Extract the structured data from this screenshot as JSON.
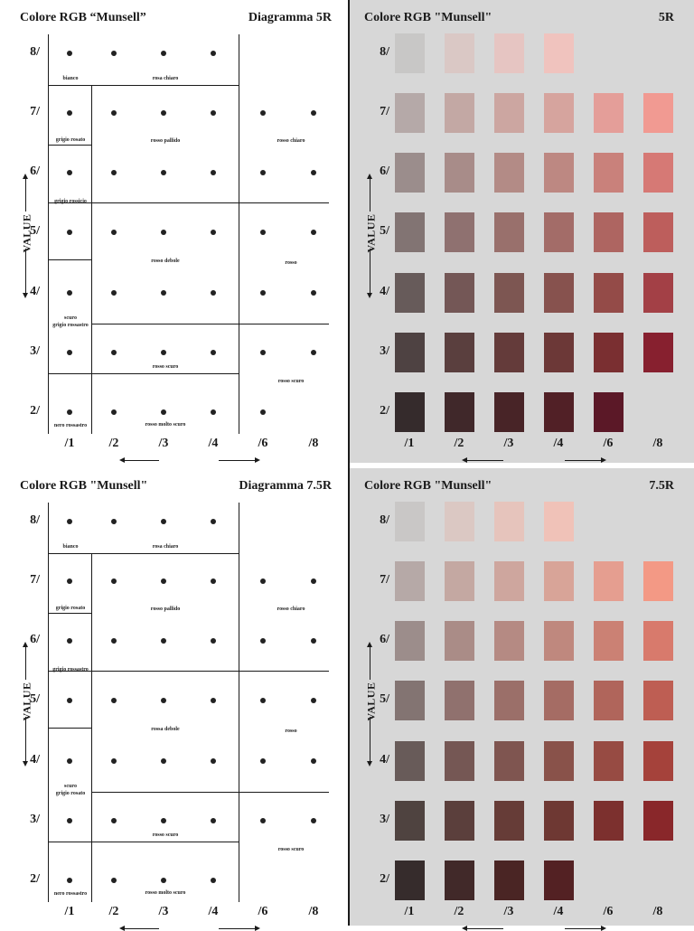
{
  "value_axis_label": "VALUE",
  "row_labels": [
    "8/",
    "7/",
    "6/",
    "5/",
    "4/",
    "3/",
    "2/"
  ],
  "col_labels": [
    "/1",
    "/2",
    "/3",
    "/4",
    "/6",
    "/8"
  ],
  "diagrams": [
    {
      "left_title": "Colore RGB “Munsell”",
      "left_subtitle": "Diagramma 5R",
      "right_title": "Colore RGB \"Munsell\"",
      "right_hue": "5R",
      "regions": [
        {
          "text": "bianco"
        },
        {
          "text": "rosa chiaro"
        },
        {
          "text": "grigio rosato"
        },
        {
          "text": "rosso pallido"
        },
        {
          "text": "rosso chiaro"
        },
        {
          "text": "grigio rossicio"
        },
        {
          "text": "rosso debole"
        },
        {
          "text": "rosso"
        },
        {
          "text": "scuro"
        },
        {
          "text": "grigio rossastro"
        },
        {
          "text": "rosso scuro"
        },
        {
          "text": "rosso scuro"
        },
        {
          "text": "nero rossastro"
        },
        {
          "text": "rosso molto scuro"
        }
      ],
      "swatches": [
        [
          "#c8c7c6",
          "#dac8c5",
          "#e6c5c2",
          "#f0c3be",
          null,
          null
        ],
        [
          "#b5a9a8",
          "#c3a8a4",
          "#cca6a1",
          "#d6a49e",
          "#e49e99",
          "#f19a92"
        ],
        [
          "#9b8d8c",
          "#a88c89",
          "#b38b86",
          "#bd8882",
          "#c9817b",
          "#d67975"
        ],
        [
          "#827473",
          "#8f7170",
          "#99706c",
          "#a36c68",
          "#ae6561",
          "#bd5e5c"
        ],
        [
          "#675b5a",
          "#745756",
          "#7d5652",
          "#87524e",
          "#944b48",
          "#a34046"
        ],
        [
          "#4e4242",
          "#5a3f3e",
          "#643b3a",
          "#6c3837",
          "#7a2f31",
          "#87202f"
        ],
        [
          "#352b2c",
          "#40282a",
          "#482427",
          "#512026",
          "#5b1827",
          null
        ]
      ],
      "dots": [
        [
          1,
          1,
          1,
          1,
          0,
          0
        ],
        [
          1,
          1,
          1,
          1,
          1,
          1
        ],
        [
          1,
          1,
          1,
          1,
          1,
          1
        ],
        [
          1,
          1,
          1,
          1,
          1,
          1
        ],
        [
          1,
          1,
          1,
          1,
          1,
          1
        ],
        [
          1,
          1,
          1,
          1,
          1,
          1
        ],
        [
          1,
          1,
          1,
          1,
          1,
          0
        ]
      ]
    },
    {
      "left_title": "Colore RGB \"Munsell\"",
      "left_subtitle": "Diagramma 7.5R",
      "right_title": "Colore RGB \"Munsell\"",
      "right_hue": "7.5R",
      "regions": [
        {
          "text": "bianco"
        },
        {
          "text": "rosa chiaro"
        },
        {
          "text": "grigio rosato"
        },
        {
          "text": "rosso pallido"
        },
        {
          "text": "rosso chiaro"
        },
        {
          "text": "grigio rossastro"
        },
        {
          "text": "rossa debole"
        },
        {
          "text": "rosso"
        },
        {
          "text": "scuro"
        },
        {
          "text": "grigio rosato"
        },
        {
          "text": "rosso scuro"
        },
        {
          "text": "rosso scuro"
        },
        {
          "text": "nero rossastro"
        },
        {
          "text": "rosso molto scuro"
        }
      ],
      "swatches": [
        [
          "#c9c7c6",
          "#dbc8c3",
          "#e6c4bc",
          "#f0c2b8",
          null,
          null
        ],
        [
          "#b6a9a7",
          "#c4a8a2",
          "#cea69e",
          "#d8a498",
          "#e59e90",
          "#f39985"
        ],
        [
          "#9c8d8b",
          "#aa8c87",
          "#b58a83",
          "#bf887e",
          "#cb8174",
          "#d87a6c"
        ],
        [
          "#837472",
          "#90716e",
          "#9b6f69",
          "#a56c64",
          "#b0655b",
          "#be5e53"
        ],
        [
          "#685b59",
          "#755754",
          "#7f5550",
          "#89524a",
          "#974b43",
          "#a5423b"
        ],
        [
          "#4f4340",
          "#5b3f3c",
          "#663c37",
          "#6e3833",
          "#7c302e",
          "#89272a"
        ],
        [
          "#362c2c",
          "#412929",
          "#4a2524",
          "#532123",
          null,
          null
        ]
      ],
      "dots": [
        [
          1,
          1,
          1,
          1,
          0,
          0
        ],
        [
          1,
          1,
          1,
          1,
          1,
          1
        ],
        [
          1,
          1,
          1,
          1,
          1,
          1
        ],
        [
          1,
          1,
          1,
          1,
          1,
          1
        ],
        [
          1,
          1,
          1,
          1,
          1,
          1
        ],
        [
          1,
          1,
          1,
          1,
          1,
          1
        ],
        [
          1,
          1,
          1,
          1,
          0,
          0
        ]
      ]
    }
  ]
}
